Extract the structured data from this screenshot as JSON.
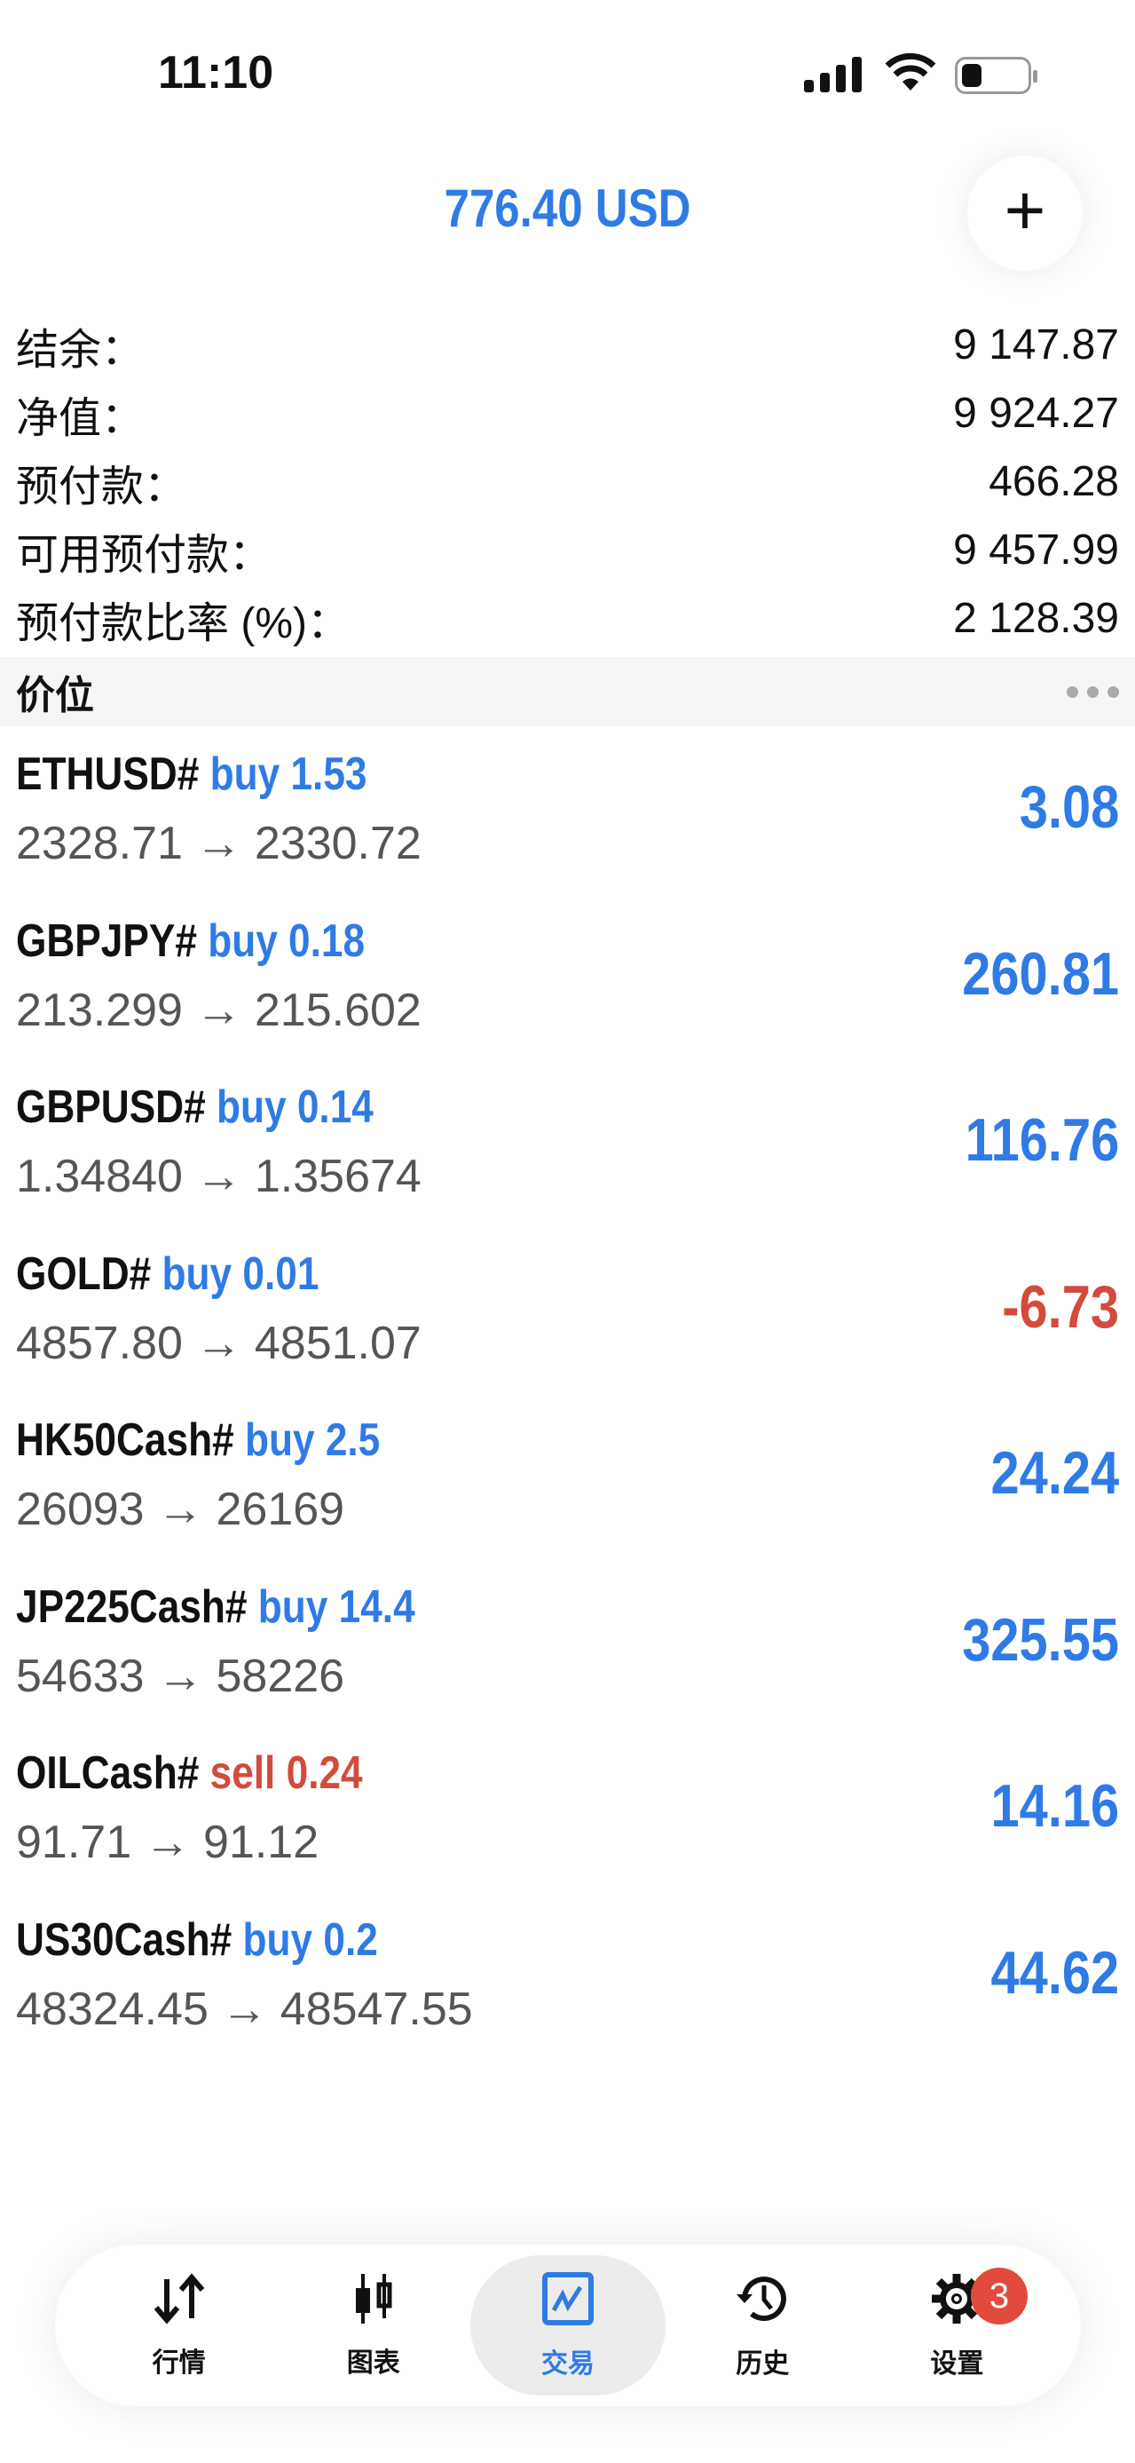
{
  "status_bar": {
    "time": "11:10"
  },
  "header": {
    "title": "776.40 USD",
    "add_icon": "plus-icon"
  },
  "summary": [
    {
      "label": "结余：",
      "value": "9 147.87"
    },
    {
      "label": "净值：",
      "value": "9 924.27"
    },
    {
      "label": "预付款：",
      "value": "466.28"
    },
    {
      "label": "可用预付款：",
      "value": "9 457.99"
    },
    {
      "label": "预付款比率 (%)：",
      "value": "2 128.39"
    }
  ],
  "section": {
    "title": "价位",
    "more_icon": "more-dots-icon"
  },
  "positions": [
    {
      "symbol": "ETHUSD#",
      "side": "buy 1.53",
      "prices": "2328.71 → 2330.72",
      "profit": "3.08"
    },
    {
      "symbol": "GBPJPY#",
      "side": "buy 0.18",
      "prices": "213.299 → 215.602",
      "profit": "260.81"
    },
    {
      "symbol": "GBPUSD#",
      "side": "buy 0.14",
      "prices": "1.34840 → 1.35674",
      "profit": "116.76"
    },
    {
      "symbol": "GOLD#",
      "side": "buy 0.01",
      "prices": "4857.80 → 4851.07",
      "profit": "-6.73"
    },
    {
      "symbol": "HK50Cash#",
      "side": "buy 2.5",
      "prices": "26093 → 26169",
      "profit": "24.24"
    },
    {
      "symbol": "JP225Cash#",
      "side": "buy 14.4",
      "prices": "54633 → 58226",
      "profit": "325.55"
    },
    {
      "symbol": "OILCash#",
      "side": "sell 0.24",
      "prices": "91.71 → 91.12",
      "profit": "14.16"
    },
    {
      "symbol": "US30Cash#",
      "side": "buy 0.2",
      "prices": "48324.45 → 48547.55",
      "profit": "44.62"
    }
  ],
  "tabs": [
    {
      "label": "行情",
      "icon": "arrows-updown-icon"
    },
    {
      "label": "图表",
      "icon": "candlestick-icon"
    },
    {
      "label": "交易",
      "icon": "trade-chart-icon",
      "active": true
    },
    {
      "label": "历史",
      "icon": "history-icon"
    },
    {
      "label": "设置",
      "icon": "gear-icon",
      "badge": "3"
    }
  ],
  "colors": {
    "accent": "#2f7be5",
    "negative": "#d24b3c",
    "badge": "#e24a3e"
  }
}
